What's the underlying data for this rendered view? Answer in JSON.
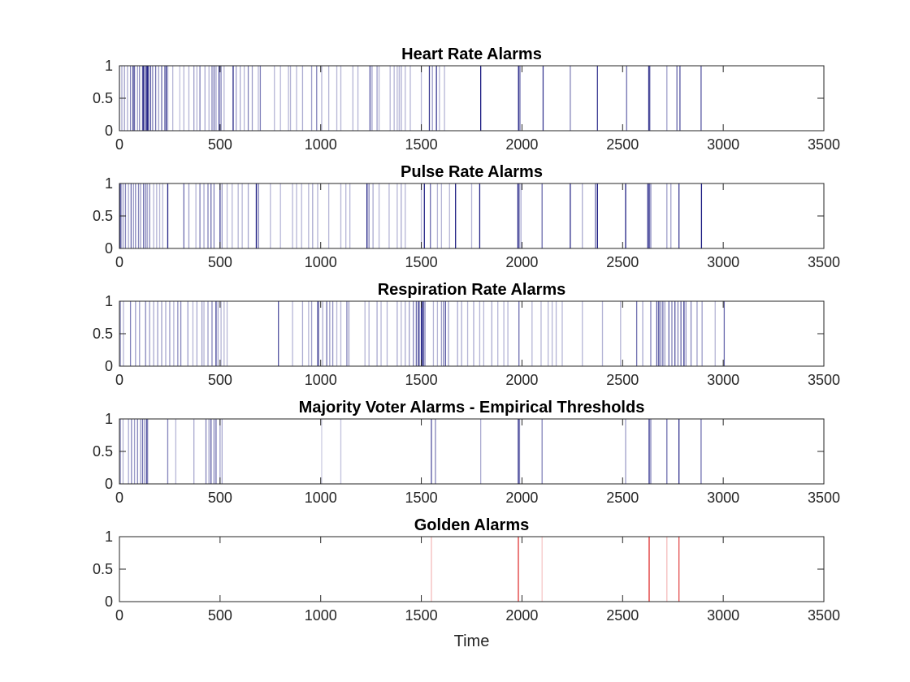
{
  "chart_data": [
    {
      "type": "bar",
      "title": "Heart Rate Alarms",
      "xlabel": "",
      "xlim": [
        0,
        3500
      ],
      "ylim": [
        0,
        1
      ],
      "xticks": [
        "0",
        "500",
        "1000",
        "1500",
        "2000",
        "2500",
        "3000",
        "3500"
      ],
      "yticks": [
        "0",
        "0.5",
        "1"
      ],
      "grid": false,
      "color": "#0a0a78",
      "alarms": [
        [
          0,
          0.3
        ],
        [
          12,
          0.35
        ],
        [
          25,
          0.4
        ],
        [
          40,
          0.35
        ],
        [
          55,
          0.5
        ],
        [
          68,
          0.9
        ],
        [
          75,
          0.6
        ],
        [
          90,
          0.4
        ],
        [
          100,
          0.5
        ],
        [
          115,
          0.7
        ],
        [
          120,
          0.9
        ],
        [
          128,
          0.6
        ],
        [
          135,
          0.8
        ],
        [
          140,
          0.9
        ],
        [
          145,
          0.6
        ],
        [
          155,
          0.7
        ],
        [
          165,
          0.5
        ],
        [
          180,
          0.6
        ],
        [
          195,
          0.4
        ],
        [
          210,
          0.6
        ],
        [
          225,
          0.5
        ],
        [
          232,
          0.9
        ],
        [
          240,
          0.4
        ],
        [
          265,
          0.3
        ],
        [
          300,
          0.25
        ],
        [
          320,
          0.3
        ],
        [
          345,
          0.3
        ],
        [
          370,
          0.4
        ],
        [
          385,
          0.3
        ],
        [
          400,
          0.5
        ],
        [
          425,
          0.35
        ],
        [
          445,
          0.3
        ],
        [
          460,
          0.5
        ],
        [
          470,
          0.6
        ],
        [
          480,
          0.4
        ],
        [
          495,
          0.8
        ],
        [
          505,
          0.5
        ],
        [
          520,
          0.3
        ],
        [
          565,
          0.9
        ],
        [
          580,
          0.4
        ],
        [
          600,
          0.35
        ],
        [
          620,
          0.3
        ],
        [
          640,
          0.5
        ],
        [
          660,
          0.4
        ],
        [
          690,
          0.3
        ],
        [
          700,
          0.5
        ],
        [
          770,
          0.3
        ],
        [
          800,
          0.3
        ],
        [
          840,
          0.3
        ],
        [
          850,
          0.3
        ],
        [
          880,
          0.3
        ],
        [
          910,
          0.35
        ],
        [
          955,
          0.4
        ],
        [
          980,
          0.5
        ],
        [
          1005,
          0.3
        ],
        [
          1040,
          0.3
        ],
        [
          1080,
          0.3
        ],
        [
          1100,
          0.3
        ],
        [
          1160,
          0.3
        ],
        [
          1185,
          0.3
        ],
        [
          1245,
          0.7
        ],
        [
          1255,
          0.4
        ],
        [
          1280,
          0.4
        ],
        [
          1290,
          0.3
        ],
        [
          1345,
          0.3
        ],
        [
          1365,
          0.3
        ],
        [
          1380,
          0.3
        ],
        [
          1390,
          0.3
        ],
        [
          1400,
          0.35
        ],
        [
          1420,
          0.3
        ],
        [
          1445,
          0.3
        ],
        [
          1500,
          0.3
        ],
        [
          1540,
          0.8
        ],
        [
          1555,
          0.4
        ],
        [
          1575,
          0.8
        ],
        [
          1590,
          0.3
        ],
        [
          1615,
          0.3
        ],
        [
          1795,
          0.95
        ],
        [
          1983,
          0.95
        ],
        [
          1990,
          0.6
        ],
        [
          2105,
          0.8
        ],
        [
          2240,
          0.5
        ],
        [
          2375,
          0.8
        ],
        [
          2520,
          0.6
        ],
        [
          2630,
          0.85
        ],
        [
          2635,
          0.7
        ],
        [
          2720,
          0.4
        ],
        [
          2770,
          0.6
        ],
        [
          2785,
          0.7
        ],
        [
          2890,
          0.7
        ]
      ]
    },
    {
      "type": "bar",
      "title": "Pulse Rate Alarms",
      "xlabel": "",
      "xlim": [
        0,
        3500
      ],
      "ylim": [
        0,
        1
      ],
      "xticks": [
        "0",
        "500",
        "1000",
        "1500",
        "2000",
        "2500",
        "3000",
        "3500"
      ],
      "yticks": [
        "0",
        "0.5",
        "1"
      ],
      "grid": false,
      "color": "#0a0a78",
      "alarms": [
        [
          3,
          0.8
        ],
        [
          8,
          0.5
        ],
        [
          18,
          0.4
        ],
        [
          30,
          0.5
        ],
        [
          45,
          0.35
        ],
        [
          58,
          0.6
        ],
        [
          70,
          0.4
        ],
        [
          80,
          0.5
        ],
        [
          95,
          0.5
        ],
        [
          105,
          0.4
        ],
        [
          120,
          0.6
        ],
        [
          130,
          0.5
        ],
        [
          138,
          0.4
        ],
        [
          150,
          0.5
        ],
        [
          170,
          0.3
        ],
        [
          185,
          0.3
        ],
        [
          200,
          0.3
        ],
        [
          215,
          0.3
        ],
        [
          240,
          0.9
        ],
        [
          320,
          0.6
        ],
        [
          345,
          0.4
        ],
        [
          380,
          0.3
        ],
        [
          400,
          0.5
        ],
        [
          420,
          0.35
        ],
        [
          440,
          0.5
        ],
        [
          455,
          0.6
        ],
        [
          470,
          0.5
        ],
        [
          500,
          0.8
        ],
        [
          510,
          0.4
        ],
        [
          535,
          0.3
        ],
        [
          560,
          0.3
        ],
        [
          590,
          0.3
        ],
        [
          610,
          0.3
        ],
        [
          640,
          0.35
        ],
        [
          680,
          0.9
        ],
        [
          690,
          0.6
        ],
        [
          750,
          0.3
        ],
        [
          800,
          0.3
        ],
        [
          860,
          0.3
        ],
        [
          880,
          0.3
        ],
        [
          905,
          0.3
        ],
        [
          940,
          0.3
        ],
        [
          960,
          0.35
        ],
        [
          985,
          0.3
        ],
        [
          1040,
          0.3
        ],
        [
          1100,
          0.3
        ],
        [
          1125,
          0.3
        ],
        [
          1145,
          0.3
        ],
        [
          1230,
          0.95
        ],
        [
          1240,
          0.5
        ],
        [
          1260,
          0.35
        ],
        [
          1290,
          0.3
        ],
        [
          1340,
          0.3
        ],
        [
          1380,
          0.3
        ],
        [
          1400,
          0.35
        ],
        [
          1420,
          0.3
        ],
        [
          1500,
          0.3
        ],
        [
          1515,
          0.9
        ],
        [
          1545,
          0.6
        ],
        [
          1580,
          0.3
        ],
        [
          1600,
          0.3
        ],
        [
          1640,
          0.3
        ],
        [
          1670,
          0.9
        ],
        [
          1750,
          0.3
        ],
        [
          1790,
          0.9
        ],
        [
          1980,
          0.95
        ],
        [
          1986,
          0.6
        ],
        [
          1995,
          0.35
        ],
        [
          2100,
          0.6
        ],
        [
          2240,
          0.85
        ],
        [
          2300,
          0.35
        ],
        [
          2365,
          0.6
        ],
        [
          2375,
          0.95
        ],
        [
          2515,
          0.9
        ],
        [
          2625,
          0.8
        ],
        [
          2632,
          0.95
        ],
        [
          2640,
          0.5
        ],
        [
          2720,
          0.4
        ],
        [
          2740,
          0.4
        ],
        [
          2780,
          0.8
        ],
        [
          2892,
          0.95
        ]
      ]
    },
    {
      "type": "bar",
      "title": "Respiration Rate Alarms",
      "xlabel": "",
      "xlim": [
        0,
        3500
      ],
      "ylim": [
        0,
        1
      ],
      "xticks": [
        "0",
        "500",
        "1000",
        "1500",
        "2000",
        "2500",
        "3000",
        "3500"
      ],
      "yticks": [
        "0",
        "0.5",
        "1"
      ],
      "grid": false,
      "color": "#0a0a78",
      "alarms": [
        [
          5,
          0.4
        ],
        [
          20,
          0.3
        ],
        [
          55,
          0.5
        ],
        [
          80,
          0.4
        ],
        [
          100,
          0.4
        ],
        [
          130,
          0.5
        ],
        [
          150,
          0.4
        ],
        [
          170,
          0.35
        ],
        [
          190,
          0.4
        ],
        [
          210,
          0.4
        ],
        [
          230,
          0.35
        ],
        [
          250,
          0.4
        ],
        [
          270,
          0.3
        ],
        [
          290,
          0.45
        ],
        [
          305,
          0.5
        ],
        [
          340,
          0.4
        ],
        [
          365,
          0.3
        ],
        [
          385,
          0.35
        ],
        [
          410,
          0.4
        ],
        [
          420,
          0.3
        ],
        [
          440,
          0.4
        ],
        [
          460,
          0.5
        ],
        [
          480,
          0.8
        ],
        [
          490,
          0.35
        ],
        [
          505,
          0.3
        ],
        [
          520,
          0.3
        ],
        [
          535,
          0.3
        ],
        [
          790,
          0.7
        ],
        [
          860,
          0.3
        ],
        [
          910,
          0.35
        ],
        [
          940,
          0.3
        ],
        [
          955,
          0.4
        ],
        [
          985,
          0.7
        ],
        [
          990,
          0.5
        ],
        [
          1010,
          0.35
        ],
        [
          1030,
          0.6
        ],
        [
          1045,
          0.4
        ],
        [
          1060,
          0.45
        ],
        [
          1080,
          0.3
        ],
        [
          1100,
          0.3
        ],
        [
          1130,
          0.5
        ],
        [
          1140,
          0.4
        ],
        [
          1220,
          0.3
        ],
        [
          1240,
          0.3
        ],
        [
          1280,
          0.35
        ],
        [
          1300,
          0.3
        ],
        [
          1330,
          0.3
        ],
        [
          1380,
          0.35
        ],
        [
          1400,
          0.3
        ],
        [
          1420,
          0.35
        ],
        [
          1440,
          0.4
        ],
        [
          1460,
          0.5
        ],
        [
          1475,
          0.6
        ],
        [
          1485,
          0.7
        ],
        [
          1490,
          0.5
        ],
        [
          1500,
          0.9
        ],
        [
          1505,
          0.6
        ],
        [
          1510,
          0.8
        ],
        [
          1518,
          0.5
        ],
        [
          1560,
          0.3
        ],
        [
          1580,
          0.3
        ],
        [
          1600,
          0.4
        ],
        [
          1610,
          0.5
        ],
        [
          1620,
          0.7
        ],
        [
          1635,
          0.4
        ],
        [
          1680,
          0.35
        ],
        [
          1700,
          0.35
        ],
        [
          1730,
          0.3
        ],
        [
          1760,
          0.35
        ],
        [
          1790,
          0.3
        ],
        [
          1810,
          0.3
        ],
        [
          1850,
          0.35
        ],
        [
          1880,
          0.3
        ],
        [
          1910,
          0.3
        ],
        [
          1930,
          0.3
        ],
        [
          1985,
          0.6
        ],
        [
          2050,
          0.3
        ],
        [
          2095,
          0.3
        ],
        [
          2130,
          0.3
        ],
        [
          2150,
          0.3
        ],
        [
          2170,
          0.3
        ],
        [
          2200,
          0.3
        ],
        [
          2300,
          0.3
        ],
        [
          2400,
          0.3
        ],
        [
          2490,
          0.3
        ],
        [
          2570,
          0.6
        ],
        [
          2600,
          0.35
        ],
        [
          2640,
          0.5
        ],
        [
          2670,
          0.7
        ],
        [
          2680,
          0.8
        ],
        [
          2690,
          0.5
        ],
        [
          2700,
          0.6
        ],
        [
          2710,
          0.4
        ],
        [
          2730,
          0.6
        ],
        [
          2745,
          0.5
        ],
        [
          2760,
          0.7
        ],
        [
          2775,
          0.5
        ],
        [
          2790,
          0.6
        ],
        [
          2805,
          0.85
        ],
        [
          2815,
          0.4
        ],
        [
          2840,
          0.5
        ],
        [
          2870,
          0.4
        ],
        [
          2895,
          0.4
        ],
        [
          2960,
          0.3
        ],
        [
          3005,
          0.6
        ]
      ]
    },
    {
      "type": "bar",
      "title": "Majority Voter Alarms - Empirical Thresholds",
      "xlabel": "",
      "xlim": [
        0,
        3500
      ],
      "ylim": [
        0,
        1
      ],
      "xticks": [
        "0",
        "500",
        "1000",
        "1500",
        "2000",
        "2500",
        "3000",
        "3500"
      ],
      "yticks": [
        "0",
        "0.5",
        "1"
      ],
      "grid": false,
      "color": "#0a0a78",
      "alarms": [
        [
          5,
          0.4
        ],
        [
          18,
          0.3
        ],
        [
          45,
          0.35
        ],
        [
          60,
          0.5
        ],
        [
          75,
          0.4
        ],
        [
          90,
          0.5
        ],
        [
          105,
          0.4
        ],
        [
          115,
          0.6
        ],
        [
          125,
          0.4
        ],
        [
          135,
          0.7
        ],
        [
          140,
          0.5
        ],
        [
          240,
          0.5
        ],
        [
          280,
          0.3
        ],
        [
          370,
          0.35
        ],
        [
          430,
          0.5
        ],
        [
          445,
          0.4
        ],
        [
          455,
          0.7
        ],
        [
          470,
          0.5
        ],
        [
          480,
          0.6
        ],
        [
          500,
          0.4
        ],
        [
          510,
          0.35
        ],
        [
          1005,
          0.2
        ],
        [
          1100,
          0.25
        ],
        [
          1550,
          0.7
        ],
        [
          1570,
          0.5
        ],
        [
          1795,
          0.35
        ],
        [
          1982,
          0.9
        ],
        [
          1988,
          0.5
        ],
        [
          2100,
          0.5
        ],
        [
          2515,
          0.4
        ],
        [
          2632,
          0.9
        ],
        [
          2640,
          0.5
        ],
        [
          2720,
          0.6
        ],
        [
          2780,
          0.85
        ],
        [
          2890,
          0.6
        ]
      ]
    },
    {
      "type": "bar",
      "title": "Golden Alarms",
      "xlabel": "Time",
      "xlim": [
        0,
        3500
      ],
      "ylim": [
        0,
        1
      ],
      "xticks": [
        "0",
        "500",
        "1000",
        "1500",
        "2000",
        "2500",
        "3000",
        "3500"
      ],
      "yticks": [
        "0",
        "0.5",
        "1"
      ],
      "grid": false,
      "color": "#dc1e1e",
      "alarms": [
        [
          1550,
          0.3
        ],
        [
          1982,
          0.9
        ],
        [
          2100,
          0.25
        ],
        [
          2632,
          0.95
        ],
        [
          2720,
          0.3
        ],
        [
          2780,
          0.8
        ]
      ]
    }
  ]
}
